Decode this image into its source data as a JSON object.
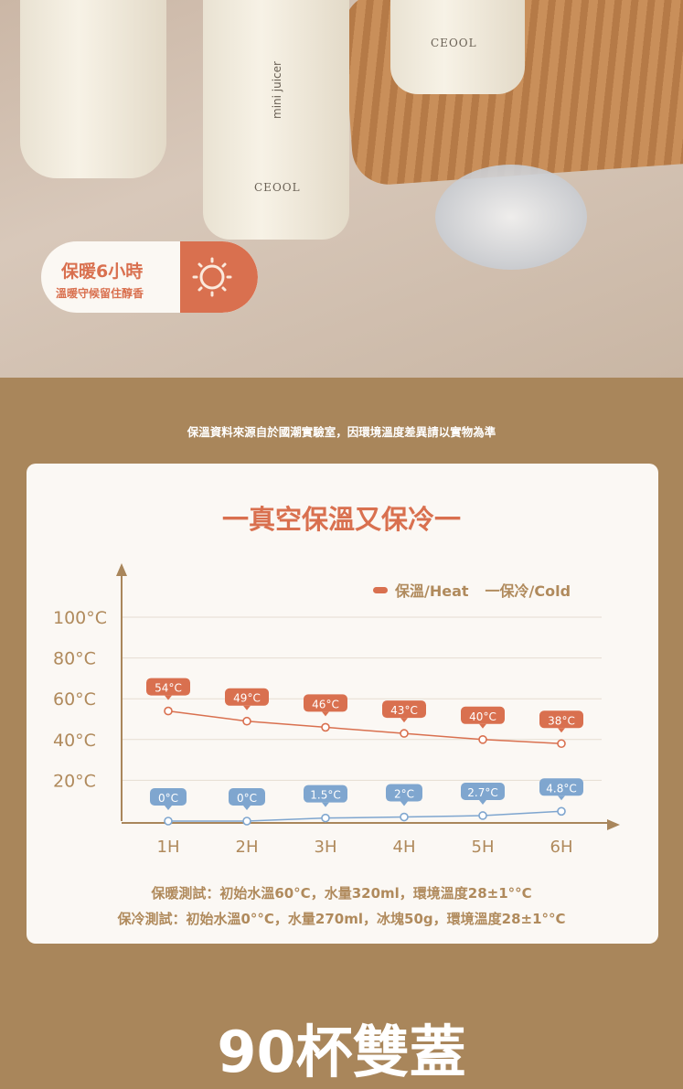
{
  "photo": {
    "brand": "CEOOL",
    "product_label": "mini juicer"
  },
  "badge": {
    "title": "保暖6小時",
    "subtitle": "溫暖守候留住醇香",
    "icon": "sun-icon"
  },
  "source_note": "保溫資料來源自於國潮實驗室，因環境溫度差異請以實物為準",
  "chart_data": {
    "type": "line",
    "title": "一真空保溫又保冷一",
    "categories": [
      "1H",
      "2H",
      "3H",
      "4H",
      "5H",
      "6H"
    ],
    "y_ticks": [
      "100°C",
      "80°C",
      "60°C",
      "40°C",
      "20°C"
    ],
    "ylim": [
      0,
      100
    ],
    "grid": true,
    "legend_position": "top-right",
    "series": [
      {
        "name": "保溫/Heat",
        "color": "#d9704f",
        "values": [
          54,
          49,
          46,
          43,
          40,
          38
        ],
        "labels": [
          "54°C",
          "49°C",
          "46°C",
          "43°C",
          "40°C",
          "38°C"
        ]
      },
      {
        "name": "一保冷/Cold",
        "color": "#7fa6cf",
        "values": [
          0,
          0,
          1.5,
          2,
          2.7,
          4.8
        ],
        "labels": [
          "0°C",
          "0°C",
          "1.5°C",
          "2°C",
          "2.7°C",
          "4.8°C"
        ]
      }
    ]
  },
  "footnotes": [
    "保暖測試：初始水溫60°C，水量320ml，環境溫度28±1°°C",
    "保冷測試：初始水溫0°°C，水量270ml，冰塊50g，環境溫度28±1°°C"
  ],
  "headline": "90杯雙蓋"
}
